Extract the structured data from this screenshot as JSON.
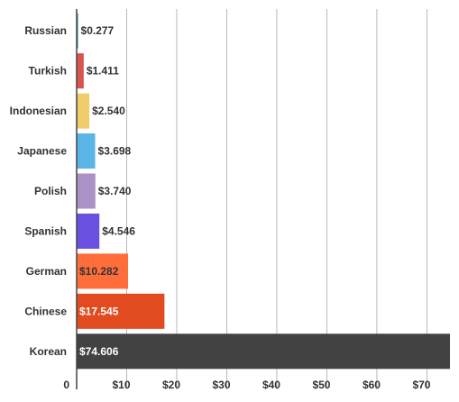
{
  "chart_data": {
    "type": "bar",
    "orientation": "horizontal",
    "title": "",
    "xlabel": "",
    "ylabel": "",
    "categories": [
      "Russian",
      "Turkish",
      "Indonesian",
      "Japanese",
      "Polish",
      "Spanish",
      "German",
      "Chinese",
      "Korean"
    ],
    "values": [
      0.277,
      1.411,
      2.54,
      3.698,
      3.74,
      4.546,
      10.282,
      17.545,
      74.606
    ],
    "data_labels": [
      "$0.277",
      "$1.411",
      "$2.540",
      "$3.698",
      "$3.740",
      "$4.546",
      "$10.282",
      "$17.545",
      "$74.606"
    ],
    "colors": [
      "#3a8f8f",
      "#d9534f",
      "#f0cd6b",
      "#5ab4e5",
      "#ab91c6",
      "#6a4fe0",
      "#ff6d3b",
      "#e24a1f",
      "#424242"
    ],
    "label_colors": [
      "#333333",
      "#333333",
      "#333333",
      "#333333",
      "#333333",
      "#333333",
      "#333333",
      "#ffffff",
      "#ffffff"
    ],
    "label_inside": [
      false,
      false,
      false,
      false,
      false,
      false,
      true,
      true,
      true
    ],
    "xlim": [
      0,
      74.606
    ],
    "x_ticks": [
      0,
      10,
      20,
      30,
      40,
      50,
      60,
      70
    ],
    "x_tick_labels": [
      "0",
      "$10",
      "$20",
      "$30",
      "$40",
      "$50",
      "$60",
      "$70"
    ],
    "grid": true,
    "legend": "none"
  }
}
